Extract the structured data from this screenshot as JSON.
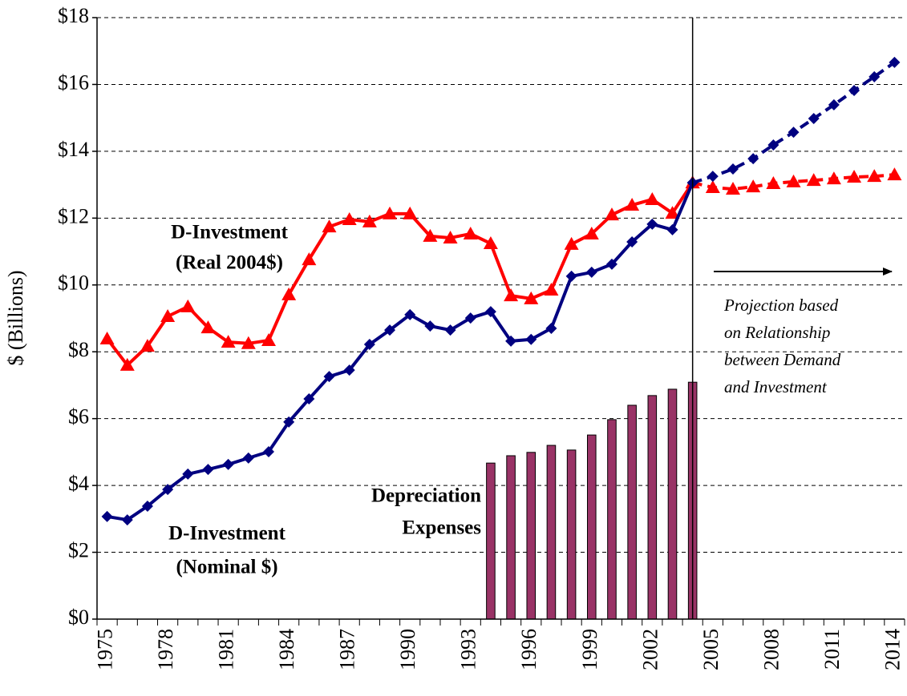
{
  "chart_data": {
    "type": "line",
    "y_label": "$ (Billions)",
    "categories": [
      "1975",
      null,
      null,
      "1978",
      null,
      null,
      "1981",
      null,
      null,
      "1984",
      null,
      null,
      "1987",
      null,
      null,
      "1990",
      null,
      null,
      "1993",
      null,
      null,
      "1996",
      null,
      null,
      "1999",
      null,
      null,
      "2002",
      null,
      null,
      "2005",
      null,
      null,
      "2008",
      null,
      null,
      "2011",
      null,
      null,
      "2014"
    ],
    "ylim": [
      0,
      18
    ],
    "yticks": [
      {
        "value": 0,
        "label": "$0"
      },
      {
        "value": 2,
        "label": "$2"
      },
      {
        "value": 4,
        "label": "$4"
      },
      {
        "value": 6,
        "label": "$6"
      },
      {
        "value": 8,
        "label": "$8"
      },
      {
        "value": 10,
        "label": "$10"
      },
      {
        "value": 12,
        "label": "$12"
      },
      {
        "value": 14,
        "label": "$14"
      },
      {
        "value": 16,
        "label": "$16"
      },
      {
        "value": 18,
        "label": "$18"
      }
    ],
    "grid": true,
    "divider_category": 29,
    "series": [
      {
        "type": "bar",
        "color": "#993366",
        "values": [
          null,
          null,
          null,
          null,
          null,
          null,
          null,
          null,
          null,
          null,
          null,
          null,
          null,
          null,
          null,
          null,
          null,
          null,
          null,
          4.67,
          4.89,
          4.99,
          5.2,
          5.06,
          5.51,
          5.97,
          6.4,
          6.69,
          6.88,
          7.09,
          null,
          null,
          null,
          null,
          null,
          null,
          null,
          null,
          null,
          null
        ]
      },
      {
        "type": "line",
        "color": "#ff0000",
        "marker": "triangle",
        "dash": false,
        "values": [
          8.39,
          7.6,
          8.17,
          9.06,
          9.35,
          8.72,
          8.29,
          8.25,
          8.34,
          9.71,
          10.76,
          11.74,
          11.96,
          11.89,
          12.13,
          12.13,
          11.46,
          11.41,
          11.53,
          11.24,
          9.68,
          9.59,
          9.85,
          11.22,
          11.53,
          12.1,
          12.39,
          12.56,
          12.15,
          13.06,
          null,
          null,
          null,
          null,
          null,
          null,
          null,
          null,
          null,
          null
        ]
      },
      {
        "type": "line",
        "color": "#ff0000",
        "marker": "triangle",
        "dash": true,
        "values": [
          null,
          null,
          null,
          null,
          null,
          null,
          null,
          null,
          null,
          null,
          null,
          null,
          null,
          null,
          null,
          null,
          null,
          null,
          null,
          null,
          null,
          null,
          null,
          null,
          null,
          null,
          null,
          null,
          null,
          13.06,
          12.92,
          12.87,
          12.94,
          13.04,
          13.09,
          13.13,
          13.18,
          13.23,
          13.25,
          13.3
        ]
      },
      {
        "type": "line",
        "color": "#000080",
        "marker": "diamond",
        "dash": false,
        "values": [
          3.07,
          2.97,
          3.38,
          3.88,
          4.34,
          4.48,
          4.63,
          4.82,
          5.01,
          5.9,
          6.59,
          7.26,
          7.45,
          8.22,
          8.65,
          9.11,
          8.77,
          8.65,
          9.01,
          9.2,
          8.32,
          8.37,
          8.7,
          10.26,
          10.38,
          10.62,
          11.29,
          11.82,
          11.65,
          13.06,
          null,
          null,
          null,
          null,
          null,
          null,
          null,
          null,
          null,
          null
        ]
      },
      {
        "type": "line",
        "color": "#000080",
        "marker": "diamond",
        "dash": true,
        "values": [
          null,
          null,
          null,
          null,
          null,
          null,
          null,
          null,
          null,
          null,
          null,
          null,
          null,
          null,
          null,
          null,
          null,
          null,
          null,
          null,
          null,
          null,
          null,
          null,
          null,
          null,
          null,
          null,
          null,
          13.06,
          13.25,
          13.47,
          13.78,
          14.19,
          14.57,
          14.98,
          15.39,
          15.82,
          16.23,
          16.66
        ]
      }
    ],
    "annotations": [
      {
        "lines": [
          "D-Investment",
          "(Real 2004$)"
        ],
        "style": "bold"
      },
      {
        "lines": [
          "D-Investment",
          "(Nominal $)"
        ],
        "style": "bold"
      },
      {
        "lines": [
          "Depreciation",
          "Expenses"
        ],
        "style": "bold"
      },
      {
        "lines": [
          "Projection based",
          "on Relationship",
          "between Demand",
          "and Investment"
        ],
        "style": "italic"
      }
    ]
  }
}
